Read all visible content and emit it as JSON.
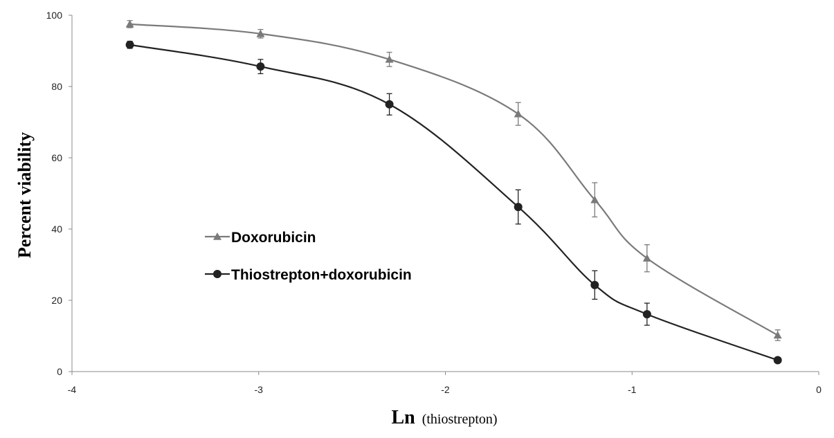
{
  "chart_data": {
    "type": "line",
    "title": "",
    "xlabel_main": "Ln",
    "xlabel_sub": "(thiostrepton)",
    "ylabel": "Percent viability",
    "xlim": [
      -4,
      0
    ],
    "ylim": [
      0,
      100
    ],
    "x_ticks": [
      -4,
      -3,
      -2,
      -1,
      0
    ],
    "x_tick_labels": [
      "-4",
      "-3",
      "-2",
      "-1",
      "0"
    ],
    "y_ticks": [
      0,
      20,
      40,
      60,
      80,
      100
    ],
    "y_tick_labels": [
      "0",
      "20",
      "40",
      "60",
      "80",
      "100"
    ],
    "grid": false,
    "legend_position": "center-left",
    "series": [
      {
        "name": "Doxorubicin",
        "marker": "triangle",
        "color": "#7a7a7a",
        "x": [
          -3.69,
          -2.99,
          -2.3,
          -1.61,
          -1.2,
          -0.92,
          -0.22
        ],
        "y": [
          97.5,
          94.8,
          87.6,
          72.3,
          48.2,
          31.8,
          10.2
        ],
        "error": [
          1.0,
          1.2,
          2.0,
          3.2,
          4.8,
          3.8,
          1.5
        ]
      },
      {
        "name": "Thiostrepton+doxorubicin",
        "marker": "circle",
        "color": "#222222",
        "x": [
          -3.69,
          -2.99,
          -2.3,
          -1.61,
          -1.2,
          -0.92,
          -0.22
        ],
        "y": [
          91.7,
          85.6,
          75.0,
          46.2,
          24.3,
          16.1,
          3.2
        ],
        "error": [
          1.0,
          2.0,
          3.0,
          4.8,
          4.0,
          3.1,
          0.5
        ]
      }
    ]
  }
}
